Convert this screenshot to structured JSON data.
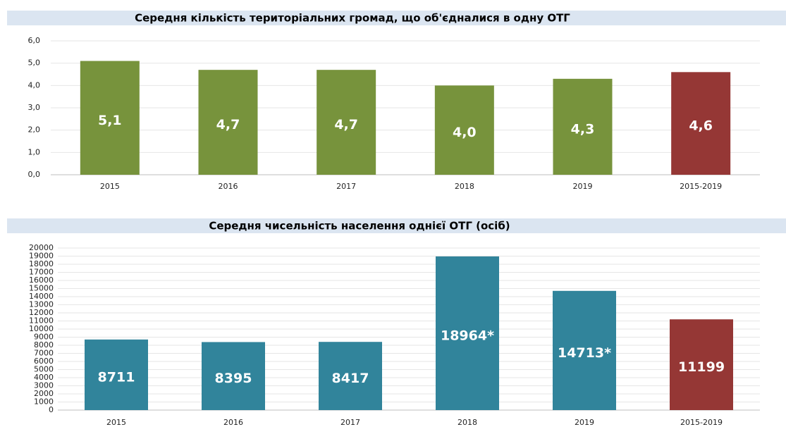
{
  "chart_data": [
    {
      "type": "bar",
      "title": "Середня кількість територіальних громад, що об'єдналися в одну ОТГ",
      "categories": [
        "2015",
        "2016",
        "2017",
        "2018",
        "2019",
        "2015-2019"
      ],
      "values": [
        5.1,
        4.7,
        4.7,
        4.0,
        4.3,
        4.6
      ],
      "value_labels": [
        "5,1",
        "4,7",
        "4,7",
        "4,0",
        "4,3",
        "4,6"
      ],
      "colors": [
        "#77933c",
        "#77933c",
        "#77933c",
        "#77933c",
        "#77933c",
        "#953735"
      ],
      "ylim": [
        0,
        6
      ],
      "yticks": [
        {
          "value": 0,
          "label": "0,0"
        },
        {
          "value": 1,
          "label": "1,0"
        },
        {
          "value": 2,
          "label": "2,0"
        },
        {
          "value": 3,
          "label": "3,0"
        },
        {
          "value": 4,
          "label": "4,0"
        },
        {
          "value": 5,
          "label": "5,0"
        },
        {
          "value": 6,
          "label": "6,0"
        }
      ],
      "grid": true
    },
    {
      "type": "bar",
      "title": "Середня чисельність населення однієї ОТГ (осіб)",
      "categories": [
        "2015",
        "2016",
        "2017",
        "2018",
        "2019",
        "2015-2019"
      ],
      "values": [
        8711,
        8395,
        8417,
        18964,
        14713,
        11199
      ],
      "value_labels": [
        "8711",
        "8395",
        "8417",
        "18964*",
        "14713*",
        "11199"
      ],
      "colors": [
        "#31849b",
        "#31849b",
        "#31849b",
        "#31849b",
        "#31849b",
        "#953735"
      ],
      "ylim": [
        0,
        20000
      ],
      "yticks": [
        0,
        1000,
        2000,
        3000,
        4000,
        5000,
        6000,
        7000,
        8000,
        9000,
        10000,
        11000,
        12000,
        13000,
        14000,
        15000,
        16000,
        17000,
        18000,
        19000,
        20000
      ],
      "grid": true
    }
  ]
}
